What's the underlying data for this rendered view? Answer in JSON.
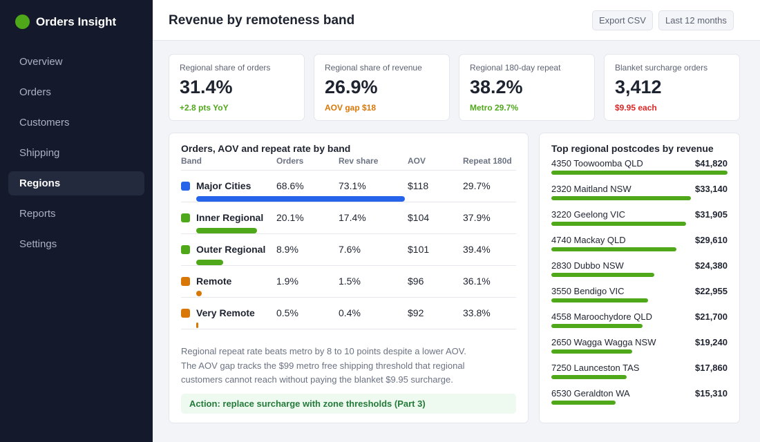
{
  "app": {
    "name": "Orders Insight"
  },
  "nav": [
    {
      "label": "Overview",
      "active": false
    },
    {
      "label": "Orders",
      "active": false
    },
    {
      "label": "Customers",
      "active": false
    },
    {
      "label": "Shipping",
      "active": false
    },
    {
      "label": "Regions",
      "active": true
    },
    {
      "label": "Reports",
      "active": false
    },
    {
      "label": "Settings",
      "active": false
    }
  ],
  "header": {
    "title": "Revenue by remoteness band",
    "export_label": "Export CSV",
    "range_label": "Last 12 months"
  },
  "kpis": [
    {
      "label": "Regional share of orders",
      "value": "31.4%",
      "sub": "+2.8 pts YoY",
      "sub_color": "#4fa81a"
    },
    {
      "label": "Regional share of revenue",
      "value": "26.9%",
      "sub": "AOV gap $18",
      "sub_color": "#d97706"
    },
    {
      "label": "Regional 180-day repeat",
      "value": "38.2%",
      "sub": "Metro 29.7%",
      "sub_color": "#4fa81a"
    },
    {
      "label": "Blanket surcharge orders",
      "value": "3,412",
      "sub": "$9.95 each",
      "sub_color": "#dc2626"
    }
  ],
  "bands_panel": {
    "title": "Orders, AOV and repeat rate by band",
    "columns": [
      "Band",
      "Orders",
      "Rev share",
      "AOV",
      "Repeat 180d"
    ],
    "rows": [
      {
        "band": "Major Cities",
        "orders": "68.6%",
        "rev_share": "73.1%",
        "aov": "$118",
        "repeat": "29.7%",
        "color": "#2563eb",
        "orders_pct": 68.6
      },
      {
        "band": "Inner Regional",
        "orders": "20.1%",
        "rev_share": "17.4%",
        "aov": "$104",
        "repeat": "37.9%",
        "color": "#4fa81a",
        "orders_pct": 20.1
      },
      {
        "band": "Outer Regional",
        "orders": "8.9%",
        "rev_share": "7.6%",
        "aov": "$101",
        "repeat": "39.4%",
        "color": "#4fa81a",
        "orders_pct": 8.9
      },
      {
        "band": "Remote",
        "orders": "1.9%",
        "rev_share": "1.5%",
        "aov": "$96",
        "repeat": "36.1%",
        "color": "#d97706",
        "orders_pct": 1.9
      },
      {
        "band": "Very Remote",
        "orders": "0.5%",
        "rev_share": "0.4%",
        "aov": "$92",
        "repeat": "33.8%",
        "color": "#d97706",
        "orders_pct": 0.5
      }
    ],
    "note_1": "Regional repeat rate beats metro by 8 to 10 points despite a lower AOV.",
    "note_2": "The AOV gap tracks the $99 metro free shipping threshold that regional",
    "note_3": "customers cannot reach without paying the blanket $9.95 surcharge.",
    "action": "Action: replace surcharge with zone thresholds (Part 3)"
  },
  "postcodes_panel": {
    "title": "Top regional postcodes by revenue",
    "rows": [
      {
        "name": "4350 Toowoomba QLD",
        "value": "$41,820",
        "amount": 41820
      },
      {
        "name": "2320 Maitland NSW",
        "value": "$33,140",
        "amount": 33140
      },
      {
        "name": "3220 Geelong VIC",
        "value": "$31,905",
        "amount": 31905
      },
      {
        "name": "4740 Mackay QLD",
        "value": "$29,610",
        "amount": 29610
      },
      {
        "name": "2830 Dubbo NSW",
        "value": "$24,380",
        "amount": 24380
      },
      {
        "name": "3550 Bendigo VIC",
        "value": "$22,955",
        "amount": 22955
      },
      {
        "name": "4558 Maroochydore QLD",
        "value": "$21,700",
        "amount": 21700
      },
      {
        "name": "2650 Wagga Wagga NSW",
        "value": "$19,240",
        "amount": 19240
      },
      {
        "name": "7250 Launceston TAS",
        "value": "$17,860",
        "amount": 17860
      },
      {
        "name": "6530 Geraldton WA",
        "value": "$15,310",
        "amount": 15310
      }
    ]
  }
}
